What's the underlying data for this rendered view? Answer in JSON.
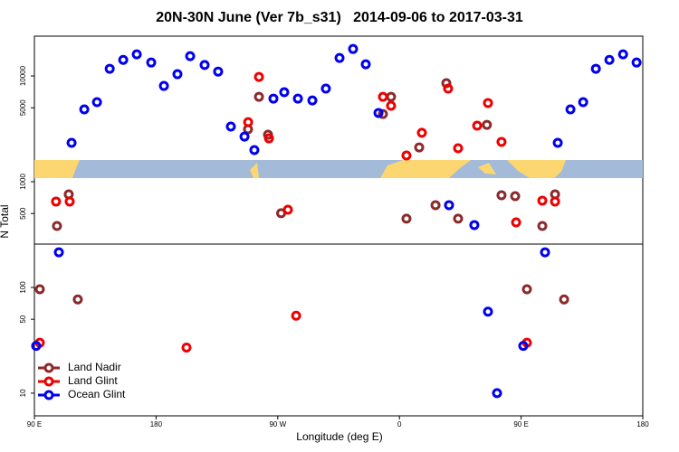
{
  "chart_data": {
    "type": "scatter",
    "title": "20N-30N June (Ver 7b_s31)   2014-09-06 to 2017-03-31",
    "x_label": "Longitude (deg E)",
    "y_label": "N Total",
    "log_y": true,
    "xlim": [
      90,
      540
    ],
    "ylim": [
      6.1,
      23800
    ],
    "xticks": [
      {
        "value": 90,
        "label": "90 E"
      },
      180,
      {
        "value": 270,
        "label": "90 W"
      },
      {
        "value": 360,
        "label": "0"
      },
      {
        "value": 450,
        "label": "90 E"
      },
      {
        "value": 540,
        "label": "180"
      }
    ],
    "yticks": [
      10,
      50,
      100,
      500,
      1000,
      5000,
      10000
    ],
    "legend_position": "bottom-left",
    "series": [
      {
        "name": "Land Nadir",
        "color": "#8b2a2a",
        "x": [
          94,
          106.7,
          115.4,
          122.1,
          248,
          256.1,
          262.8,
          272.5,
          347.8,
          353.8,
          365.2,
          374.6,
          386.7,
          394.7,
          403.4,
          424.7,
          435.5,
          445.6,
          454.3,
          465.7,
          475.1,
          481.8
        ],
        "values": [
          96,
          381,
          759,
          77,
          3130,
          6350,
          2780,
          503,
          4370,
          6350,
          447,
          2110,
          600,
          8550,
          447,
          3450,
          745,
          730,
          96,
          381,
          759,
          77
        ]
      },
      {
        "name": "Land Glint",
        "color": "#ee0000",
        "x": [
          94,
          106,
          116.1,
          202.5,
          248.1,
          256.1,
          263.5,
          277.5,
          283.6,
          347.8,
          353.8,
          365.2,
          376.6,
          396,
          403.4,
          417.5,
          425.5,
          435.5,
          446.3,
          454.3,
          465.7,
          475.1
        ],
        "values": [
          30,
          649,
          649,
          27,
          3660,
          9790,
          2570,
          543,
          54,
          6350,
          5230,
          1770,
          2900,
          7590,
          2070,
          3390,
          5550,
          2380,
          412,
          30,
          662,
          649
        ]
      },
      {
        "name": "Ocean Glint",
        "color": "#0000ee",
        "x": [
          91.3,
          108.1,
          117.5,
          126.9,
          136.3,
          145.7,
          155.7,
          165.7,
          176.4,
          185.8,
          195.8,
          205.2,
          215.9,
          225.9,
          235.3,
          245.4,
          252.7,
          266.8,
          274.8,
          284.9,
          295.6,
          305.6,
          315.7,
          325.7,
          335.1,
          344.5,
          396.7,
          415.4,
          425.5,
          432.2,
          451.6,
          467.7,
          477.1,
          486.5,
          495.9,
          505.3,
          515.3,
          525.4,
          535.4
        ],
        "values": [
          28,
          215,
          2330,
          4830,
          5650,
          11700,
          14200,
          16000,
          13400,
          8050,
          10400,
          15400,
          12700,
          11000,
          3320,
          2670,
          1990,
          6110,
          7020,
          6110,
          5870,
          7590,
          14800,
          18000,
          12900,
          4470,
          600,
          389,
          59,
          10,
          28,
          215,
          2330,
          4830,
          5650,
          11700,
          14200,
          16000,
          13400
        ]
      }
    ]
  }
}
